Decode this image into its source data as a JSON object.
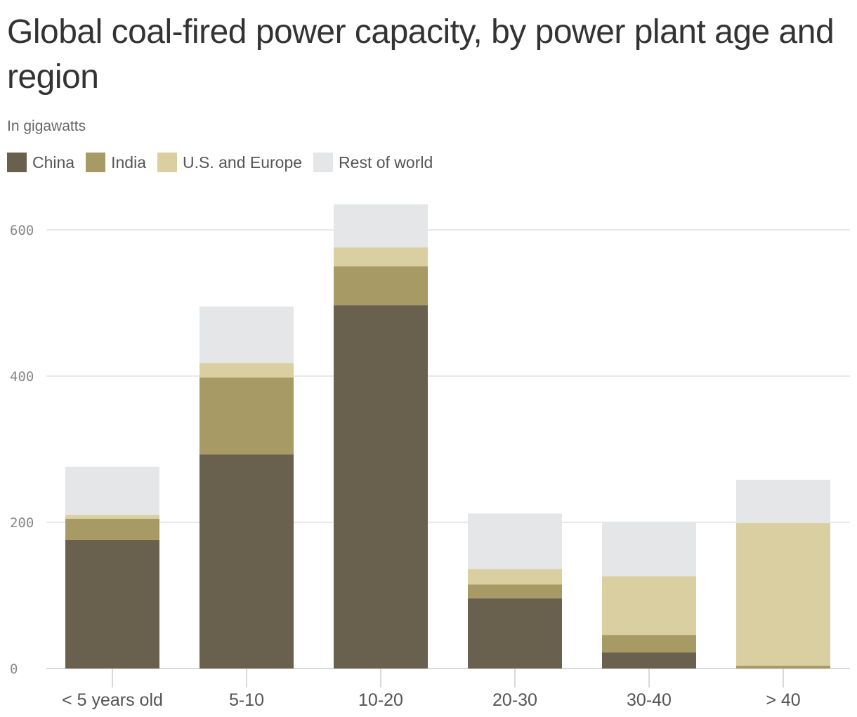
{
  "chart_data": {
    "type": "bar",
    "stacked": true,
    "title": "Global coal-fired power capacity, by power plant age and region",
    "subtitle": "In gigawatts",
    "categories": [
      "< 5 years old",
      "5-10",
      "10-20",
      "20-30",
      "30-40",
      "> 40"
    ],
    "series": [
      {
        "name": "China",
        "color": "#69614d",
        "values": [
          176,
          293,
          497,
          96,
          22,
          0
        ]
      },
      {
        "name": "India",
        "color": "#a89a64",
        "values": [
          29,
          105,
          53,
          19,
          24,
          4
        ]
      },
      {
        "name": "U.S. and Europe",
        "color": "#d9cfa1",
        "values": [
          5,
          20,
          26,
          21,
          80,
          195
        ]
      },
      {
        "name": "Rest of world",
        "color": "#e5e6e7",
        "values": [
          66,
          77,
          59,
          76,
          74,
          59
        ]
      }
    ],
    "yticks": [
      "0",
      "200",
      "400",
      "600"
    ],
    "ylim": [
      0,
      640
    ],
    "grid": true,
    "legend_position": "top-left"
  }
}
